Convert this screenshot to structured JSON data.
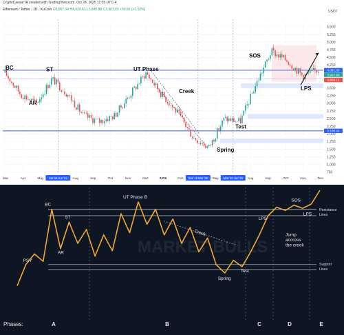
{
  "header": {
    "credit": "CryptoCaesarTA created with TradingView.com, Oct 24, 2025 11:05 UTC-4",
    "symbol": "Ethereum / Tether · 1D · KuCoin",
    "ohlc": "O3,857.04 H4,029.61 L3,845.88 C3,907.83",
    "change": "+50.80 (+1.32%)",
    "currency": "USDT"
  },
  "chart_data": [
    {
      "type": "line",
      "title": "",
      "ylabel": "USDT",
      "ylim": [
        700,
        5700
      ],
      "y_ticks": [
        750,
        1000,
        1250,
        1500,
        1750,
        2000,
        2250,
        2500,
        2750,
        3000,
        3250,
        3500,
        3750,
        4000,
        4250,
        4500,
        4750,
        5000,
        5250,
        5500
      ],
      "x_ticks": [
        "Mar",
        "Apr",
        "May",
        "Sat 08 Jun '24",
        "Aug",
        "Sep",
        "Oct",
        "Nov",
        "Dec",
        "2025",
        "Feb",
        "Sun 16 Mar '25",
        "May",
        "Mon 23 Jun '25",
        "Aug",
        "Sep",
        "Oct",
        "Nov",
        "Dec"
      ],
      "highlighted_ticks": [
        "Sat 08 Jun '24",
        "Sun 16 Mar '25",
        "Mon 23 Jun '25"
      ],
      "x": [
        "Mar",
        "Apr",
        "May",
        "Jun",
        "Jul",
        "Aug",
        "Sep",
        "Oct",
        "Nov",
        "Dec",
        "Jan",
        "Feb",
        "Mar",
        "Apr",
        "May",
        "Jun",
        "Jul",
        "Aug",
        "Sep",
        "Oct",
        "Nov"
      ],
      "series": [
        {
          "values": [
            4000,
            3300,
            3000,
            3800,
            3300,
            2600,
            2400,
            2600,
            3300,
            4000,
            3300,
            2700,
            1900,
            1550,
            2500,
            2400,
            3600,
            4700,
            4400,
            3900,
            4100
          ]
        }
      ],
      "price_labels": [
        "4,081.30",
        "3,907.83",
        "3,808.13",
        "2,100.00"
      ],
      "annotations": [
        "BC",
        "ST",
        "AR",
        "UT Phase",
        "Creek",
        "SOS",
        "LPS",
        "Test",
        "Spring"
      ],
      "legend": "none",
      "grid": true
    },
    {
      "type": "line",
      "title": "",
      "x": [
        0,
        1,
        2,
        3,
        4,
        5,
        6,
        7,
        8,
        9,
        10,
        11,
        12,
        13,
        14,
        15,
        16,
        17,
        18,
        19,
        20,
        21,
        22,
        23,
        24,
        25,
        26,
        27,
        28,
        29,
        30,
        31,
        32,
        33,
        34,
        35
      ],
      "series": [
        {
          "values": [
            10,
            30,
            40,
            33,
            82,
            45,
            70,
            50,
            63,
            38,
            58,
            43,
            78,
            60,
            89,
            68,
            82,
            58,
            73,
            50,
            65,
            42,
            55,
            30,
            22,
            34,
            28,
            42,
            58,
            76,
            84,
            81,
            86,
            83,
            87,
            100
          ]
        }
      ],
      "phases_label": "Phases:",
      "phases": [
        "A",
        "B",
        "C",
        "D",
        "E"
      ],
      "annotations": [
        "PSY",
        "BC",
        "ST",
        "AR",
        "UT Phase B",
        "Creek",
        "LPS",
        "Jump accross the creek",
        "SOS",
        "LPS",
        "Spring",
        "Test"
      ],
      "level_lines": [
        "Resistance Lines",
        "Support Lines"
      ],
      "watermark": "MARKET BULLS",
      "legend": "none",
      "grid": false
    }
  ],
  "colors": {
    "up": "#26a69a",
    "down": "#ef5350",
    "accent_blue": "#2962ff",
    "bottom_bg": "#0e1624",
    "bottom_line": "#f3a83a"
  }
}
